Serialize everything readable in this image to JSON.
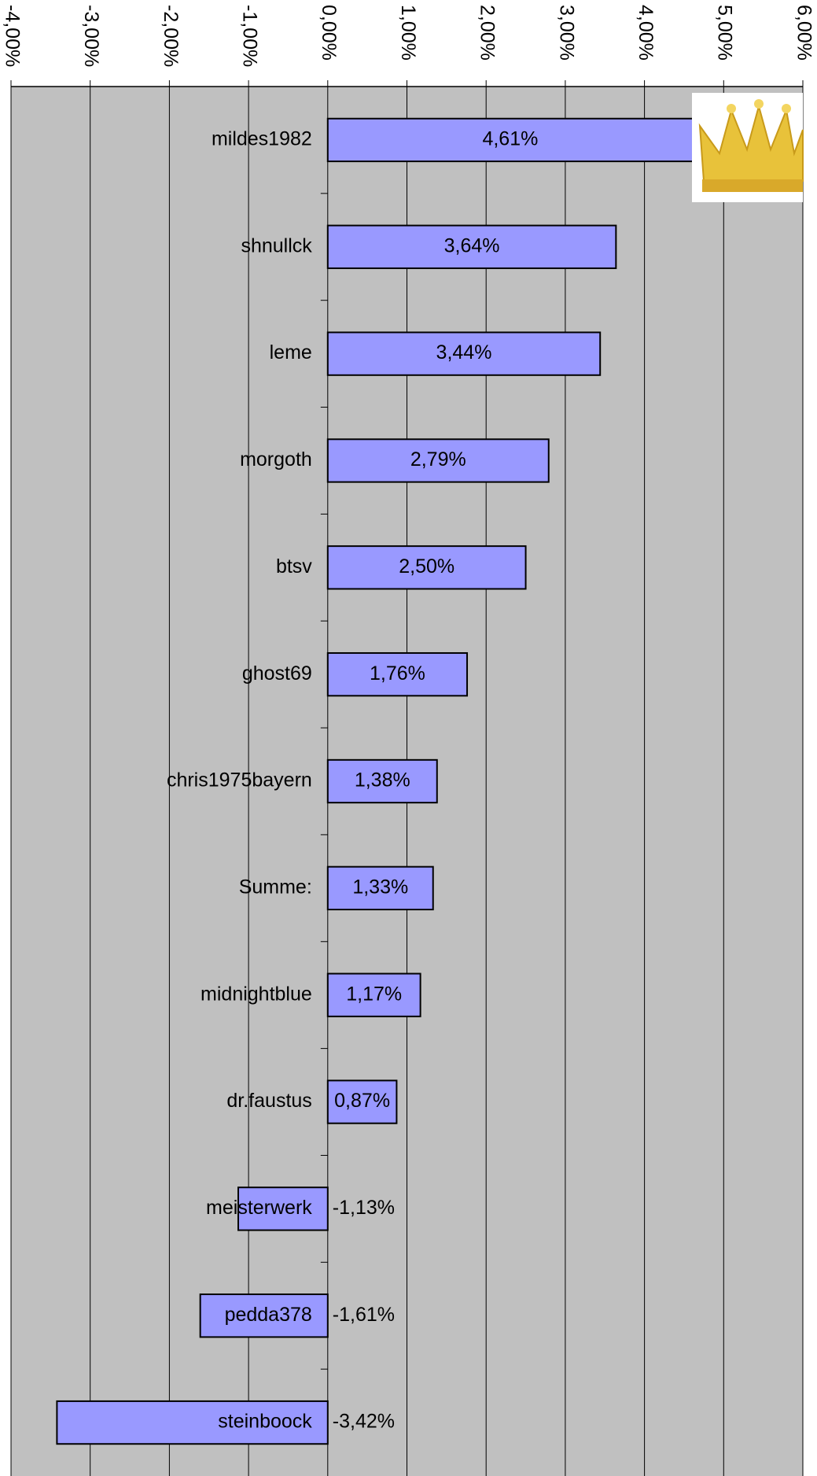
{
  "chart_data": {
    "type": "bar",
    "orientation": "horizontal",
    "categories": [
      "mildes1982",
      "shnullck",
      "leme",
      "morgoth",
      "btsv",
      "ghost69",
      "chris1975bayern",
      "Summe:",
      "midnightblue",
      "dr.faustus",
      "meisterwerk",
      "pedda378",
      "steinboock"
    ],
    "values": [
      4.61,
      3.64,
      3.44,
      2.79,
      2.5,
      1.76,
      1.38,
      1.33,
      1.17,
      0.87,
      -1.13,
      -1.61,
      -3.42
    ],
    "value_labels": [
      "4,61%",
      "3,64%",
      "3,44%",
      "2,79%",
      "2,50%",
      "1,76%",
      "1,38%",
      "1,33%",
      "1,17%",
      "0,87%",
      "-1,13%",
      "-1,61%",
      "-3,42%"
    ],
    "color": "#9999ff",
    "xlim": [
      -4,
      6
    ],
    "xticks": [
      {
        "value": -4,
        "label": "-4,00%"
      },
      {
        "value": -3,
        "label": "-3,00%"
      },
      {
        "value": -2,
        "label": "-2,00%"
      },
      {
        "value": -1,
        "label": "-1,00%"
      },
      {
        "value": 0,
        "label": "0,00%"
      },
      {
        "value": 1,
        "label": "1,00%"
      },
      {
        "value": 2,
        "label": "2,00%"
      },
      {
        "value": 3,
        "label": "3,00%"
      },
      {
        "value": 4,
        "label": "4,00%"
      },
      {
        "value": 5,
        "label": "5,00%"
      },
      {
        "value": 6,
        "label": "6,00%"
      }
    ],
    "grid": true
  }
}
